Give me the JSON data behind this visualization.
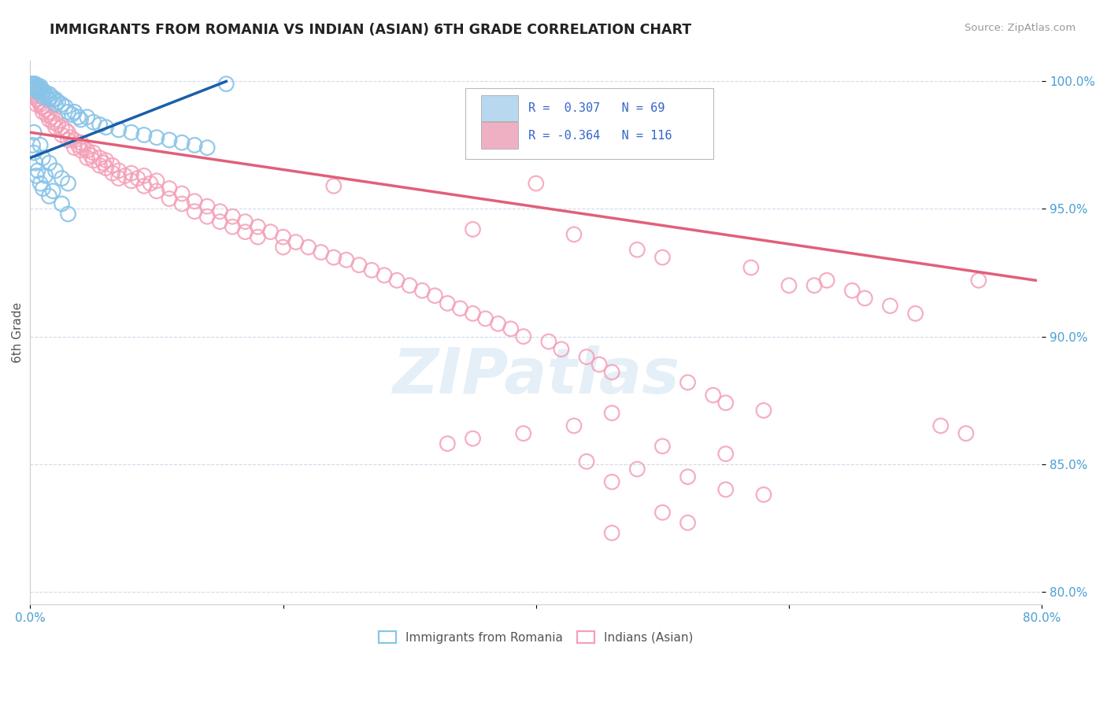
{
  "title": "IMMIGRANTS FROM ROMANIA VS INDIAN (ASIAN) 6TH GRADE CORRELATION CHART",
  "source_text": "Source: ZipAtlas.com",
  "ylabel": "6th Grade",
  "watermark": "ZIPatlas",
  "legend_label1": "Immigrants from Romania",
  "legend_label2": "Indians (Asian)",
  "xmin": 0.0,
  "xmax": 0.8,
  "ymin": 0.795,
  "ymax": 1.008,
  "yticks": [
    0.8,
    0.85,
    0.9,
    0.95,
    1.0
  ],
  "ytick_labels": [
    "80.0%",
    "85.0%",
    "90.0%",
    "95.0%",
    "100.0%"
  ],
  "blue_scatter": [
    [
      0.001,
      0.999
    ],
    [
      0.001,
      0.998
    ],
    [
      0.002,
      0.999
    ],
    [
      0.002,
      0.998
    ],
    [
      0.002,
      0.997
    ],
    [
      0.003,
      0.999
    ],
    [
      0.003,
      0.998
    ],
    [
      0.003,
      0.997
    ],
    [
      0.004,
      0.999
    ],
    [
      0.004,
      0.997
    ],
    [
      0.005,
      0.998
    ],
    [
      0.005,
      0.997
    ],
    [
      0.006,
      0.998
    ],
    [
      0.006,
      0.996
    ],
    [
      0.007,
      0.997
    ],
    [
      0.008,
      0.998
    ],
    [
      0.008,
      0.996
    ],
    [
      0.009,
      0.997
    ],
    [
      0.01,
      0.996
    ],
    [
      0.01,
      0.994
    ],
    [
      0.011,
      0.996
    ],
    [
      0.012,
      0.995
    ],
    [
      0.013,
      0.994
    ],
    [
      0.015,
      0.995
    ],
    [
      0.015,
      0.993
    ],
    [
      0.017,
      0.994
    ],
    [
      0.018,
      0.993
    ],
    [
      0.02,
      0.993
    ],
    [
      0.02,
      0.991
    ],
    [
      0.022,
      0.992
    ],
    [
      0.025,
      0.991
    ],
    [
      0.028,
      0.99
    ],
    [
      0.03,
      0.988
    ],
    [
      0.033,
      0.987
    ],
    [
      0.035,
      0.988
    ],
    [
      0.038,
      0.986
    ],
    [
      0.04,
      0.985
    ],
    [
      0.045,
      0.986
    ],
    [
      0.05,
      0.984
    ],
    [
      0.055,
      0.983
    ],
    [
      0.06,
      0.982
    ],
    [
      0.07,
      0.981
    ],
    [
      0.08,
      0.98
    ],
    [
      0.09,
      0.979
    ],
    [
      0.1,
      0.978
    ],
    [
      0.11,
      0.977
    ],
    [
      0.12,
      0.976
    ],
    [
      0.13,
      0.975
    ],
    [
      0.14,
      0.974
    ],
    [
      0.155,
      0.999
    ],
    [
      0.003,
      0.98
    ],
    [
      0.008,
      0.975
    ],
    [
      0.01,
      0.97
    ],
    [
      0.015,
      0.968
    ],
    [
      0.02,
      0.965
    ],
    [
      0.025,
      0.962
    ],
    [
      0.03,
      0.96
    ],
    [
      0.015,
      0.955
    ],
    [
      0.01,
      0.958
    ],
    [
      0.005,
      0.963
    ],
    [
      0.003,
      0.972
    ],
    [
      0.002,
      0.975
    ],
    [
      0.004,
      0.968
    ],
    [
      0.006,
      0.965
    ],
    [
      0.008,
      0.96
    ],
    [
      0.012,
      0.963
    ],
    [
      0.018,
      0.957
    ],
    [
      0.025,
      0.952
    ],
    [
      0.03,
      0.948
    ]
  ],
  "pink_scatter": [
    [
      0.001,
      0.997
    ],
    [
      0.002,
      0.996
    ],
    [
      0.003,
      0.995
    ],
    [
      0.004,
      0.994
    ],
    [
      0.005,
      0.993
    ],
    [
      0.005,
      0.991
    ],
    [
      0.006,
      0.993
    ],
    [
      0.007,
      0.992
    ],
    [
      0.008,
      0.991
    ],
    [
      0.009,
      0.99
    ],
    [
      0.01,
      0.99
    ],
    [
      0.01,
      0.988
    ],
    [
      0.012,
      0.989
    ],
    [
      0.013,
      0.987
    ],
    [
      0.015,
      0.988
    ],
    [
      0.015,
      0.985
    ],
    [
      0.017,
      0.986
    ],
    [
      0.018,
      0.984
    ],
    [
      0.02,
      0.985
    ],
    [
      0.02,
      0.982
    ],
    [
      0.022,
      0.983
    ],
    [
      0.025,
      0.982
    ],
    [
      0.025,
      0.979
    ],
    [
      0.028,
      0.981
    ],
    [
      0.03,
      0.98
    ],
    [
      0.03,
      0.977
    ],
    [
      0.032,
      0.978
    ],
    [
      0.035,
      0.977
    ],
    [
      0.035,
      0.974
    ],
    [
      0.038,
      0.975
    ],
    [
      0.04,
      0.976
    ],
    [
      0.04,
      0.973
    ],
    [
      0.042,
      0.974
    ],
    [
      0.045,
      0.973
    ],
    [
      0.045,
      0.97
    ],
    [
      0.048,
      0.971
    ],
    [
      0.05,
      0.972
    ],
    [
      0.05,
      0.969
    ],
    [
      0.055,
      0.97
    ],
    [
      0.055,
      0.967
    ],
    [
      0.058,
      0.968
    ],
    [
      0.06,
      0.969
    ],
    [
      0.06,
      0.966
    ],
    [
      0.065,
      0.967
    ],
    [
      0.065,
      0.964
    ],
    [
      0.07,
      0.965
    ],
    [
      0.07,
      0.962
    ],
    [
      0.075,
      0.963
    ],
    [
      0.08,
      0.964
    ],
    [
      0.08,
      0.961
    ],
    [
      0.085,
      0.962
    ],
    [
      0.09,
      0.963
    ],
    [
      0.09,
      0.959
    ],
    [
      0.095,
      0.96
    ],
    [
      0.1,
      0.961
    ],
    [
      0.1,
      0.957
    ],
    [
      0.11,
      0.958
    ],
    [
      0.11,
      0.954
    ],
    [
      0.12,
      0.956
    ],
    [
      0.12,
      0.952
    ],
    [
      0.13,
      0.953
    ],
    [
      0.13,
      0.949
    ],
    [
      0.14,
      0.951
    ],
    [
      0.14,
      0.947
    ],
    [
      0.15,
      0.949
    ],
    [
      0.15,
      0.945
    ],
    [
      0.16,
      0.947
    ],
    [
      0.16,
      0.943
    ],
    [
      0.17,
      0.945
    ],
    [
      0.17,
      0.941
    ],
    [
      0.18,
      0.943
    ],
    [
      0.18,
      0.939
    ],
    [
      0.19,
      0.941
    ],
    [
      0.2,
      0.939
    ],
    [
      0.2,
      0.935
    ],
    [
      0.21,
      0.937
    ],
    [
      0.22,
      0.935
    ],
    [
      0.23,
      0.933
    ],
    [
      0.24,
      0.959
    ],
    [
      0.24,
      0.931
    ],
    [
      0.25,
      0.93
    ],
    [
      0.26,
      0.928
    ],
    [
      0.27,
      0.926
    ],
    [
      0.28,
      0.924
    ],
    [
      0.29,
      0.922
    ],
    [
      0.3,
      0.92
    ],
    [
      0.31,
      0.918
    ],
    [
      0.32,
      0.916
    ],
    [
      0.33,
      0.913
    ],
    [
      0.34,
      0.911
    ],
    [
      0.35,
      0.942
    ],
    [
      0.35,
      0.909
    ],
    [
      0.36,
      0.907
    ],
    [
      0.37,
      0.905
    ],
    [
      0.38,
      0.903
    ],
    [
      0.39,
      0.9
    ],
    [
      0.4,
      0.96
    ],
    [
      0.41,
      0.898
    ],
    [
      0.42,
      0.895
    ],
    [
      0.43,
      0.94
    ],
    [
      0.44,
      0.892
    ],
    [
      0.45,
      0.889
    ],
    [
      0.46,
      0.886
    ],
    [
      0.48,
      0.934
    ],
    [
      0.5,
      0.931
    ],
    [
      0.52,
      0.882
    ],
    [
      0.54,
      0.877
    ],
    [
      0.55,
      0.874
    ],
    [
      0.57,
      0.927
    ],
    [
      0.58,
      0.871
    ],
    [
      0.6,
      0.92
    ],
    [
      0.62,
      0.92
    ],
    [
      0.63,
      0.922
    ],
    [
      0.65,
      0.918
    ],
    [
      0.66,
      0.915
    ],
    [
      0.68,
      0.912
    ],
    [
      0.7,
      0.909
    ],
    [
      0.72,
      0.865
    ],
    [
      0.74,
      0.862
    ],
    [
      0.75,
      0.922
    ],
    [
      0.46,
      0.87
    ],
    [
      0.43,
      0.865
    ],
    [
      0.39,
      0.862
    ],
    [
      0.35,
      0.86
    ],
    [
      0.33,
      0.858
    ],
    [
      0.5,
      0.857
    ],
    [
      0.55,
      0.854
    ],
    [
      0.44,
      0.851
    ],
    [
      0.48,
      0.848
    ],
    [
      0.52,
      0.845
    ],
    [
      0.46,
      0.843
    ],
    [
      0.55,
      0.84
    ],
    [
      0.58,
      0.838
    ],
    [
      0.5,
      0.831
    ],
    [
      0.52,
      0.827
    ],
    [
      0.46,
      0.823
    ]
  ],
  "blue_line_x": [
    0.0,
    0.155
  ],
  "blue_line_y": [
    0.97,
    1.0
  ],
  "pink_line_x": [
    0.0,
    0.795
  ],
  "pink_line_y": [
    0.98,
    0.922
  ],
  "scatter_color_blue": "#89C4E8",
  "scatter_color_pink": "#F4A0B8",
  "line_color_blue": "#1a5fa8",
  "line_color_pink": "#e0607a",
  "legend_box_color_blue": "#b8d8f0",
  "legend_box_color_pink": "#f0b0c4",
  "background_color": "#ffffff",
  "grid_color": "#c8d8e8",
  "title_color": "#222222",
  "ytick_color": "#4a9fd4",
  "source_color": "#999999"
}
